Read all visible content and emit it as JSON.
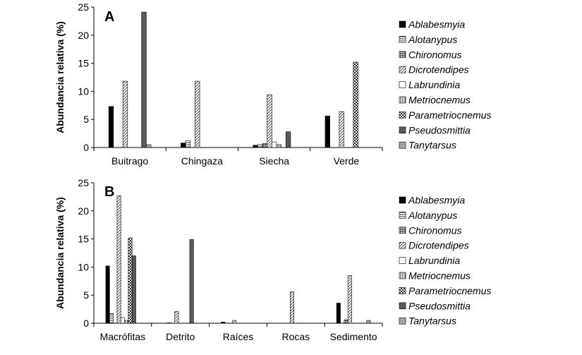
{
  "species": [
    "Ablabesmyia",
    "Alotanypus",
    "Chironomus",
    "Dicrotendipes",
    "Labrundinia",
    "Metriocnemus",
    "Parametriocnemus",
    "Pseudosmittia",
    "Tanytarsus"
  ],
  "patterns": [
    "solid-black",
    "horizontal-lines",
    "grid",
    "diagonal-lines",
    "white",
    "vertical-lines",
    "checker",
    "solid-gray",
    "solid-light-gray"
  ],
  "chart_data": [
    {
      "type": "bar",
      "panel_label": "A",
      "ylabel": "Abundancia relativa (%)",
      "xlabel": "",
      "ylim": [
        0,
        25
      ],
      "yticks": [
        0,
        5,
        10,
        15,
        20,
        25
      ],
      "categories": [
        "Buitrago",
        "Chingaza",
        "Siecha",
        "Verde"
      ],
      "series": [
        {
          "name": "Ablabesmyia",
          "values": [
            7.3,
            0.8,
            0.4,
            5.6
          ]
        },
        {
          "name": "Alotanypus",
          "values": [
            0,
            1.2,
            0.5,
            0
          ]
        },
        {
          "name": "Chironomus",
          "values": [
            0,
            0,
            0.7,
            0
          ]
        },
        {
          "name": "Dicrotendipes",
          "values": [
            11.8,
            11.8,
            9.4,
            6.4
          ]
        },
        {
          "name": "Labrundinia",
          "values": [
            0,
            0,
            1.0,
            0
          ]
        },
        {
          "name": "Metriocnemus",
          "values": [
            0,
            0,
            0.5,
            0
          ]
        },
        {
          "name": "Parametriocnemus",
          "values": [
            0,
            0,
            0,
            15.2
          ]
        },
        {
          "name": "Pseudosmittia",
          "values": [
            24.1,
            0,
            2.8,
            0
          ]
        },
        {
          "name": "Tanytarsus",
          "values": [
            0.5,
            0,
            0,
            0
          ]
        }
      ],
      "legend_position": "right",
      "grid": false
    },
    {
      "type": "bar",
      "panel_label": "B",
      "ylabel": "Abundancia relativa (%)",
      "xlabel": "",
      "ylim": [
        0,
        25
      ],
      "yticks": [
        0,
        5,
        10,
        15,
        20,
        25
      ],
      "categories": [
        "Macrófitas",
        "Detrito",
        "Raíces",
        "Rocas",
        "Sedimento"
      ],
      "series": [
        {
          "name": "Ablabesmyia",
          "values": [
            10.2,
            0,
            0.2,
            0,
            3.6
          ]
        },
        {
          "name": "Alotanypus",
          "values": [
            1.7,
            0.1,
            0,
            0,
            0
          ]
        },
        {
          "name": "Chironomus",
          "values": [
            0,
            0,
            0,
            0,
            0.6
          ]
        },
        {
          "name": "Dicrotendipes",
          "values": [
            22.7,
            2.1,
            0.5,
            5.6,
            8.5
          ]
        },
        {
          "name": "Labrundinia",
          "values": [
            1.0,
            0,
            0,
            0,
            0
          ]
        },
        {
          "name": "Metriocnemus",
          "values": [
            0.5,
            0,
            0,
            0,
            0
          ]
        },
        {
          "name": "Parametriocnemus",
          "values": [
            15.2,
            0,
            0,
            0,
            0
          ]
        },
        {
          "name": "Pseudosmittia",
          "values": [
            12.0,
            14.9,
            0,
            0,
            0
          ]
        },
        {
          "name": "Tanytarsus",
          "values": [
            0,
            0,
            0,
            0,
            0.5
          ]
        }
      ],
      "legend_position": "right",
      "grid": false
    }
  ]
}
